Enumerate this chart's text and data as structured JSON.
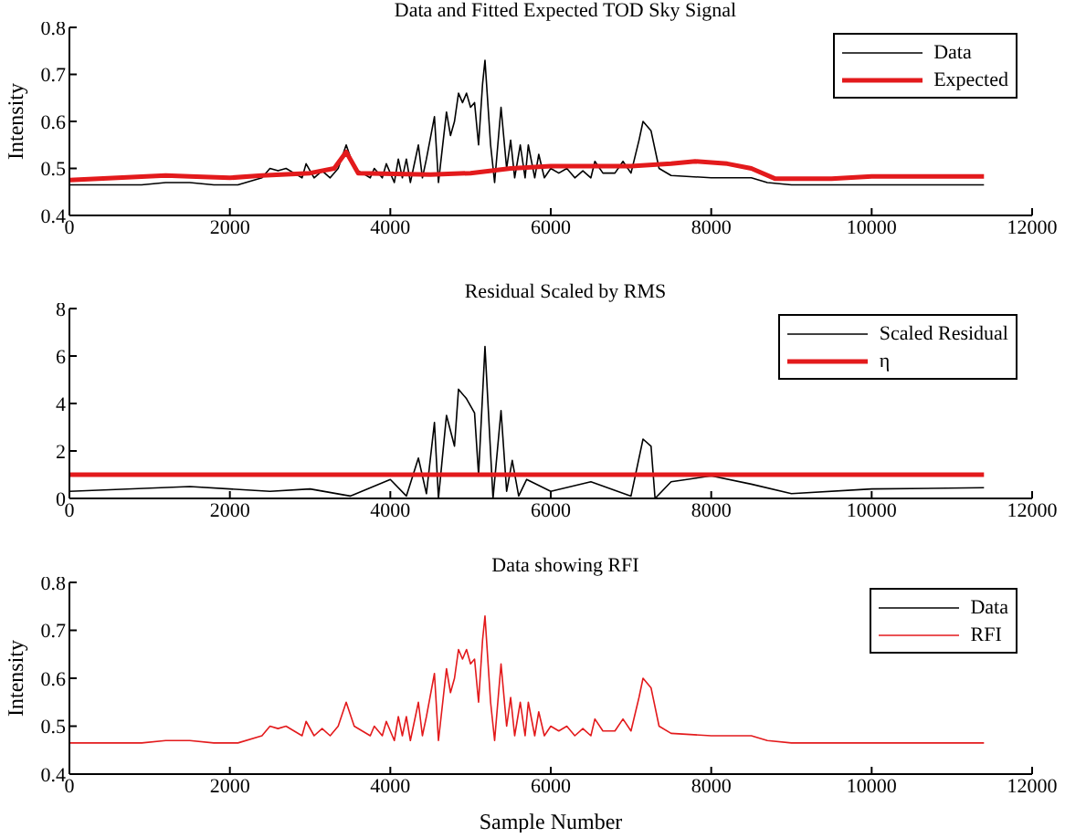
{
  "chart_data": [
    {
      "type": "line",
      "title": "Data and Fitted Expected TOD Sky Signal",
      "ylabel": "Intensity",
      "xlim": [
        0,
        12000
      ],
      "xticks": [
        0,
        2000,
        4000,
        6000,
        8000,
        10000,
        12000
      ],
      "ylim": [
        0.4,
        0.8
      ],
      "yticks": [
        0.4,
        0.5,
        0.6,
        0.7,
        0.8
      ],
      "legend": "top right",
      "series": [
        {
          "name": "Data",
          "color": "#000000",
          "x": [
            0,
            300,
            600,
            900,
            1200,
            1500,
            1800,
            2100,
            2400,
            2500,
            2600,
            2700,
            2800,
            2900,
            2950,
            3050,
            3150,
            3250,
            3350,
            3450,
            3550,
            3650,
            3750,
            3800,
            3900,
            3950,
            4050,
            4100,
            4150,
            4200,
            4250,
            4350,
            4400,
            4450,
            4550,
            4600,
            4700,
            4750,
            4800,
            4850,
            4900,
            4950,
            5000,
            5050,
            5100,
            5150,
            5180,
            5250,
            5300,
            5380,
            5450,
            5500,
            5550,
            5620,
            5680,
            5720,
            5800,
            5850,
            5920,
            6000,
            6100,
            6200,
            6300,
            6400,
            6500,
            6550,
            6650,
            6800,
            6900,
            7000,
            7100,
            7150,
            7250,
            7350,
            7500,
            8000,
            8500,
            8700,
            9000,
            9500,
            10000,
            10500,
            11000,
            11400
          ],
          "values": [
            0.465,
            0.465,
            0.465,
            0.465,
            0.47,
            0.47,
            0.465,
            0.465,
            0.48,
            0.5,
            0.495,
            0.5,
            0.49,
            0.48,
            0.51,
            0.48,
            0.495,
            0.48,
            0.5,
            0.55,
            0.5,
            0.49,
            0.48,
            0.5,
            0.48,
            0.51,
            0.47,
            0.52,
            0.48,
            0.52,
            0.47,
            0.55,
            0.48,
            0.52,
            0.61,
            0.47,
            0.62,
            0.57,
            0.6,
            0.66,
            0.64,
            0.66,
            0.63,
            0.64,
            0.55,
            0.68,
            0.73,
            0.55,
            0.47,
            0.63,
            0.5,
            0.56,
            0.48,
            0.55,
            0.48,
            0.55,
            0.48,
            0.53,
            0.48,
            0.5,
            0.49,
            0.5,
            0.48,
            0.495,
            0.48,
            0.515,
            0.49,
            0.49,
            0.515,
            0.49,
            0.56,
            0.6,
            0.58,
            0.5,
            0.485,
            0.48,
            0.48,
            0.47,
            0.465,
            0.465,
            0.465,
            0.465,
            0.465,
            0.465
          ]
        },
        {
          "name": "Expected",
          "color": "#e31a1c",
          "x": [
            0,
            1200,
            1500,
            2000,
            2400,
            3000,
            3300,
            3450,
            3600,
            4500,
            5000,
            5500,
            6000,
            7000,
            7500,
            7800,
            8200,
            8500,
            8800,
            9500,
            10000,
            11400
          ],
          "values": [
            0.475,
            0.485,
            0.483,
            0.48,
            0.485,
            0.49,
            0.5,
            0.535,
            0.49,
            0.487,
            0.49,
            0.5,
            0.505,
            0.505,
            0.51,
            0.515,
            0.51,
            0.5,
            0.478,
            0.478,
            0.483,
            0.483
          ]
        }
      ]
    },
    {
      "type": "line",
      "title": "Residual Scaled by RMS",
      "xlim": [
        0,
        12000
      ],
      "xticks": [
        0,
        2000,
        4000,
        6000,
        8000,
        10000,
        12000
      ],
      "ylim": [
        0,
        8
      ],
      "yticks": [
        0,
        2,
        4,
        6,
        8
      ],
      "legend": "top right",
      "series": [
        {
          "name": "Scaled Residual",
          "color": "#000000",
          "x": [
            0,
            1500,
            2500,
            3000,
            3500,
            4000,
            4200,
            4350,
            4450,
            4550,
            4600,
            4700,
            4800,
            4850,
            4950,
            5050,
            5100,
            5180,
            5280,
            5380,
            5450,
            5520,
            5600,
            5700,
            6000,
            6500,
            7000,
            7150,
            7250,
            7300,
            7500,
            8000,
            8500,
            9000,
            10000,
            11400
          ],
          "values": [
            0.3,
            0.5,
            0.3,
            0.4,
            0.1,
            0.8,
            0.1,
            1.7,
            0.2,
            3.2,
            0,
            3.5,
            2.2,
            4.6,
            4.2,
            3.6,
            1,
            6.4,
            0,
            3.7,
            0.3,
            1.6,
            0.1,
            0.8,
            0.3,
            0.7,
            0.1,
            2.5,
            2.2,
            0,
            0.7,
            0.95,
            0.6,
            0.2,
            0.4,
            0.45
          ]
        },
        {
          "name": "η",
          "color": "#e31a1c",
          "x": [
            0,
            11400
          ],
          "values": [
            1,
            1
          ]
        }
      ]
    },
    {
      "type": "line",
      "title": "Data showing RFI",
      "xlabel": "Sample Number",
      "ylabel": "Intensity",
      "xlim": [
        0,
        12000
      ],
      "xticks": [
        0,
        2000,
        4000,
        6000,
        8000,
        10000,
        12000
      ],
      "ylim": [
        0.4,
        0.8
      ],
      "yticks": [
        0.4,
        0.5,
        0.6,
        0.7,
        0.8
      ],
      "legend": "top right",
      "series": [
        {
          "name": "Data",
          "color": "#000000"
        },
        {
          "name": "RFI",
          "color": "#e31a1c",
          "x": [
            0,
            300,
            600,
            900,
            1200,
            1500,
            1800,
            2100,
            2400,
            2500,
            2600,
            2700,
            2800,
            2900,
            2950,
            3050,
            3150,
            3250,
            3350,
            3450,
            3550,
            3650,
            3750,
            3800,
            3900,
            3950,
            4050,
            4100,
            4150,
            4200,
            4250,
            4350,
            4400,
            4450,
            4550,
            4600,
            4700,
            4750,
            4800,
            4850,
            4900,
            4950,
            5000,
            5050,
            5100,
            5150,
            5180,
            5250,
            5300,
            5380,
            5450,
            5500,
            5550,
            5620,
            5680,
            5720,
            5800,
            5850,
            5920,
            6000,
            6100,
            6200,
            6300,
            6400,
            6500,
            6550,
            6650,
            6800,
            6900,
            7000,
            7100,
            7150,
            7250,
            7350,
            7500,
            8000,
            8500,
            8700,
            9000,
            9500,
            10000,
            10500,
            11000,
            11400
          ],
          "values": [
            0.465,
            0.465,
            0.465,
            0.465,
            0.47,
            0.47,
            0.465,
            0.465,
            0.48,
            0.5,
            0.495,
            0.5,
            0.49,
            0.48,
            0.51,
            0.48,
            0.495,
            0.48,
            0.5,
            0.55,
            0.5,
            0.49,
            0.48,
            0.5,
            0.48,
            0.51,
            0.47,
            0.52,
            0.48,
            0.52,
            0.47,
            0.55,
            0.48,
            0.52,
            0.61,
            0.47,
            0.62,
            0.57,
            0.6,
            0.66,
            0.64,
            0.66,
            0.63,
            0.64,
            0.55,
            0.68,
            0.73,
            0.55,
            0.47,
            0.63,
            0.5,
            0.56,
            0.48,
            0.55,
            0.48,
            0.55,
            0.48,
            0.53,
            0.48,
            0.5,
            0.49,
            0.5,
            0.48,
            0.495,
            0.48,
            0.515,
            0.49,
            0.49,
            0.515,
            0.49,
            0.56,
            0.6,
            0.58,
            0.5,
            0.485,
            0.48,
            0.48,
            0.47,
            0.465,
            0.465,
            0.465,
            0.465,
            0.465,
            0.465
          ]
        }
      ]
    }
  ]
}
